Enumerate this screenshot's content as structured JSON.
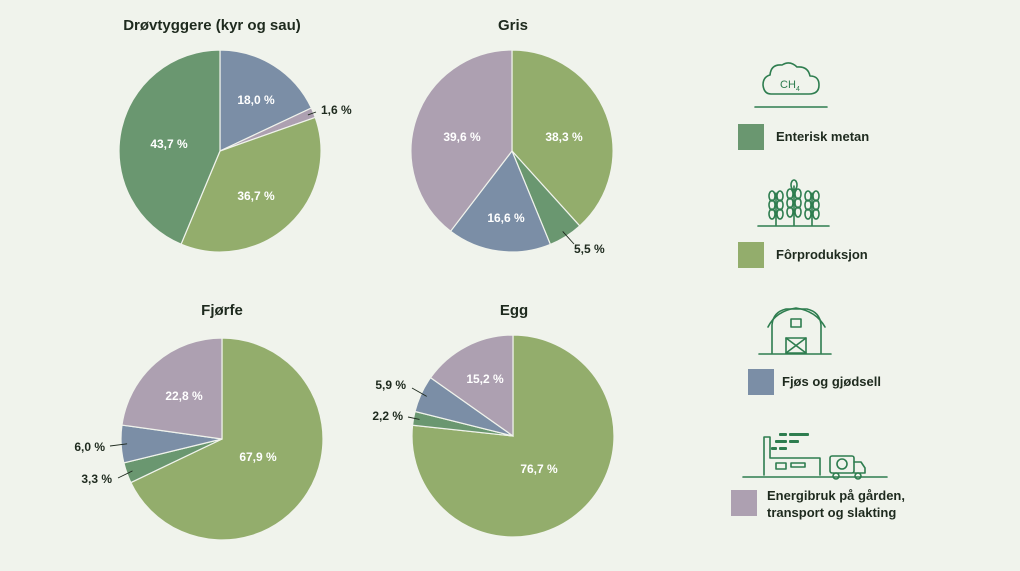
{
  "colors": {
    "enterisk_metan": "#6a9770",
    "forproduksjon": "#93ad6c",
    "fjos_gjodsel": "#7b8ea6",
    "energibruk": "#ada0b1",
    "ink": "#1e2a1e",
    "icon": "#2e7d4f"
  },
  "legend": [
    {
      "key": "enterisk_metan",
      "label": "Enterisk metan",
      "icon": "cloud-ch4-icon",
      "icon_text": "CH",
      "icon_sub": "4"
    },
    {
      "key": "forproduksjon",
      "label": "Fôrproduksjon",
      "icon": "wheat-icon"
    },
    {
      "key": "fjos_gjodsel",
      "label": "Fjøs og gjødsell",
      "icon": "barn-icon"
    },
    {
      "key": "energibruk",
      "label_lines": [
        "Energibruk på gården,",
        "transport og slakting"
      ],
      "icon": "factory-truck-icon"
    }
  ],
  "chart_data": [
    {
      "type": "pie",
      "title": "Drøvtyggere (kyr og sau)",
      "slices": [
        {
          "key": "fjos_gjodsel",
          "label": "18,0 %",
          "value": 18.0
        },
        {
          "key": "energibruk",
          "label": "1,6 %",
          "value": 1.6
        },
        {
          "key": "forproduksjon",
          "label": "36,7 %",
          "value": 36.7
        },
        {
          "key": "enterisk_metan",
          "label": "43,7 %",
          "value": 43.7
        }
      ]
    },
    {
      "type": "pie",
      "title": "Gris",
      "slices": [
        {
          "key": "forproduksjon",
          "label": "38,3 %",
          "value": 38.3
        },
        {
          "key": "enterisk_metan",
          "label": "5,5 %",
          "value": 5.5
        },
        {
          "key": "fjos_gjodsel",
          "label": "16,6 %",
          "value": 16.6
        },
        {
          "key": "energibruk",
          "label": "39,6 %",
          "value": 39.6
        }
      ]
    },
    {
      "type": "pie",
      "title": "Fjørfe",
      "slices": [
        {
          "key": "forproduksjon",
          "label": "67,9 %",
          "value": 67.9
        },
        {
          "key": "enterisk_metan",
          "label": "3,3 %",
          "value": 3.3
        },
        {
          "key": "fjos_gjodsel",
          "label": "6,0 %",
          "value": 6.0
        },
        {
          "key": "energibruk",
          "label": "22,8 %",
          "value": 22.8
        }
      ]
    },
    {
      "type": "pie",
      "title": "Egg",
      "slices": [
        {
          "key": "forproduksjon",
          "label": "76,7 %",
          "value": 76.7
        },
        {
          "key": "enterisk_metan",
          "label": "2,2 %",
          "value": 2.2
        },
        {
          "key": "fjos_gjodsel",
          "label": "5,9 %",
          "value": 5.9
        },
        {
          "key": "energibruk",
          "label": "15,2 %",
          "value": 15.2
        }
      ]
    }
  ]
}
